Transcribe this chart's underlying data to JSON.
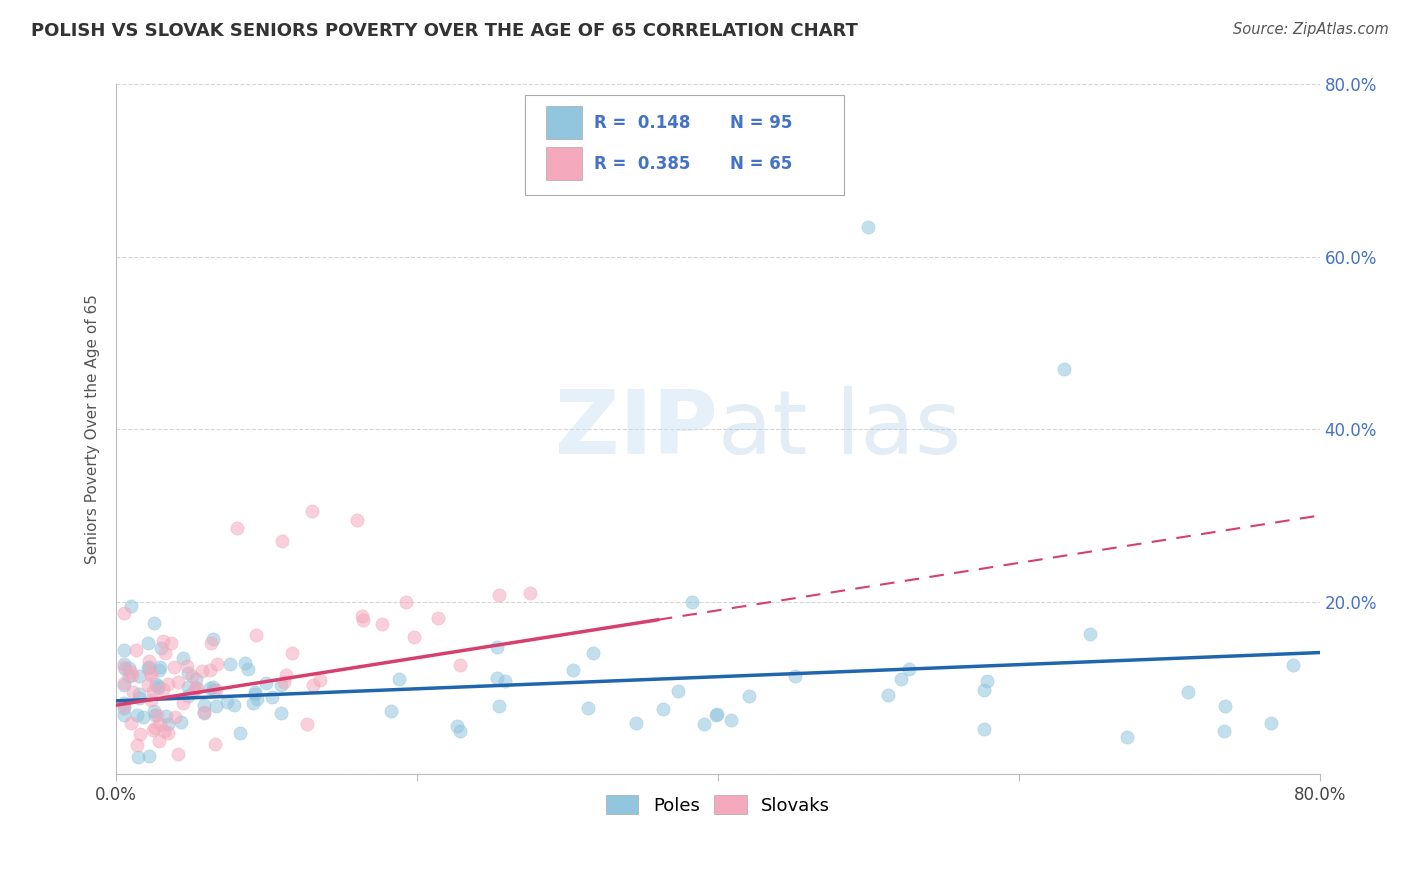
{
  "title": "POLISH VS SLOVAK SENIORS POVERTY OVER THE AGE OF 65 CORRELATION CHART",
  "source": "Source: ZipAtlas.com",
  "ylabel": "Seniors Poverty Over the Age of 65",
  "xlim": [
    0.0,
    0.8
  ],
  "ylim": [
    0.0,
    0.8
  ],
  "poles_color": "#92c5de",
  "slovaks_color": "#f4a9bc",
  "poles_line_color": "#2166ac",
  "slovaks_line_color": "#d63f6e",
  "poles_R": 0.148,
  "poles_N": 95,
  "slovaks_R": 0.385,
  "slovaks_N": 65,
  "legend_label_poles": "Poles",
  "legend_label_slovaks": "Slovaks",
  "background_color": "#ffffff",
  "grid_color": "#cccccc",
  "title_color": "#333333",
  "right_tick_color": "#4472c4",
  "watermark_color": "#daeaf7",
  "annotation_color": "#4472c4"
}
